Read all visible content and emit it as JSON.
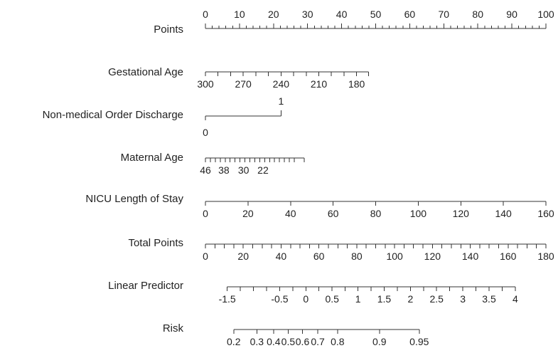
{
  "chart_data": {
    "type": "nomogram",
    "rows": [
      {
        "name": "Points",
        "labels": [
          "0",
          "10",
          "20",
          "30",
          "40",
          "50",
          "60",
          "70",
          "80",
          "90",
          "100"
        ],
        "label_points": [
          0,
          10,
          20,
          30,
          40,
          50,
          60,
          70,
          80,
          90,
          100
        ],
        "minor_points": [
          0,
          2,
          4,
          6,
          8,
          10,
          12,
          14,
          16,
          18,
          20,
          22,
          24,
          26,
          28,
          30,
          32,
          34,
          36,
          38,
          40,
          42,
          44,
          46,
          48,
          50,
          52,
          54,
          56,
          58,
          60,
          62,
          64,
          66,
          68,
          70,
          72,
          74,
          76,
          78,
          80,
          82,
          84,
          86,
          88,
          90,
          92,
          94,
          96,
          98,
          100
        ],
        "labels_above": true
      },
      {
        "name": "Gestational Age",
        "labels": [
          "300",
          "270",
          "240",
          "210",
          "180"
        ],
        "label_points": [
          0,
          11.1,
          22.2,
          33.3,
          44.4
        ],
        "minor_points": [
          0,
          3.7,
          7.4,
          11.1,
          14.8,
          18.5,
          22.2,
          25.9,
          29.6,
          33.3,
          37.0,
          40.7,
          44.4,
          47.9
        ]
      },
      {
        "name": "Non-medical Order Discharge",
        "labels": [
          "0",
          "1"
        ],
        "label_points": [
          0,
          22.2
        ]
      },
      {
        "name": "Maternal Age",
        "labels": [
          "46",
          "38",
          "30",
          "22"
        ],
        "label_points": [
          0,
          5.4,
          11.2,
          16.9
        ],
        "minor_points": [
          0,
          1.45,
          2.9,
          4.35,
          5.8,
          7.25,
          8.7,
          10.15,
          11.6,
          13.05,
          14.5,
          15.95,
          17.4,
          18.85,
          20.3,
          21.75,
          23.2,
          24.65,
          26.1,
          29.0
        ]
      },
      {
        "name": "NICU Length of Stay",
        "labels": [
          "0",
          "20",
          "40",
          "60",
          "80",
          "100",
          "120",
          "140",
          "160"
        ],
        "label_points": [
          0,
          12.5,
          25,
          37.5,
          50,
          62.5,
          75,
          87.5,
          100
        ]
      },
      {
        "name": "Total Points",
        "labels": [
          "0",
          "20",
          "40",
          "60",
          "80",
          "100",
          "120",
          "140",
          "160",
          "180"
        ],
        "label_points": [
          0,
          11.11,
          22.22,
          33.33,
          44.44,
          55.56,
          66.67,
          77.78,
          88.89,
          100
        ],
        "minor_points": [
          0,
          2.78,
          5.56,
          8.33,
          11.11,
          13.89,
          16.67,
          19.44,
          22.22,
          25,
          27.78,
          30.56,
          33.33,
          36.11,
          38.89,
          41.67,
          44.44,
          47.22,
          50,
          52.78,
          55.56,
          58.33,
          61.11,
          63.89,
          66.67,
          69.44,
          72.22,
          75,
          77.78,
          80.56,
          83.33,
          86.11,
          88.89,
          91.67,
          94.44,
          97.22,
          100
        ]
      },
      {
        "name": "Linear Predictor",
        "labels": [
          "-1.5",
          "-0.5",
          "0",
          "0.5",
          "1",
          "1.5",
          "2",
          "2.5",
          "3",
          "3.5",
          "4"
        ],
        "label_points": [
          6.4,
          21.8,
          29.5,
          37.2,
          44.8,
          52.5,
          60.2,
          67.9,
          75.6,
          83.3,
          91.0
        ],
        "minor_points": [
          6.4,
          10.25,
          14.1,
          17.95,
          21.8,
          25.65,
          29.5,
          33.35,
          37.2,
          41.0,
          44.8,
          48.65,
          52.5,
          56.35,
          60.2,
          64.05,
          67.9,
          71.75,
          75.6,
          79.45,
          83.3,
          87.15,
          91.0
        ]
      },
      {
        "name": "Risk",
        "labels": [
          "0.2",
          "0.3",
          "0.4",
          "0.5",
          "0.6",
          "0.7",
          "0.8",
          "0.9",
          "0.95"
        ],
        "label_points": [
          8.3,
          15.1,
          20.0,
          24.3,
          28.5,
          33.0,
          38.8,
          51.1,
          62.8
        ]
      }
    ]
  }
}
